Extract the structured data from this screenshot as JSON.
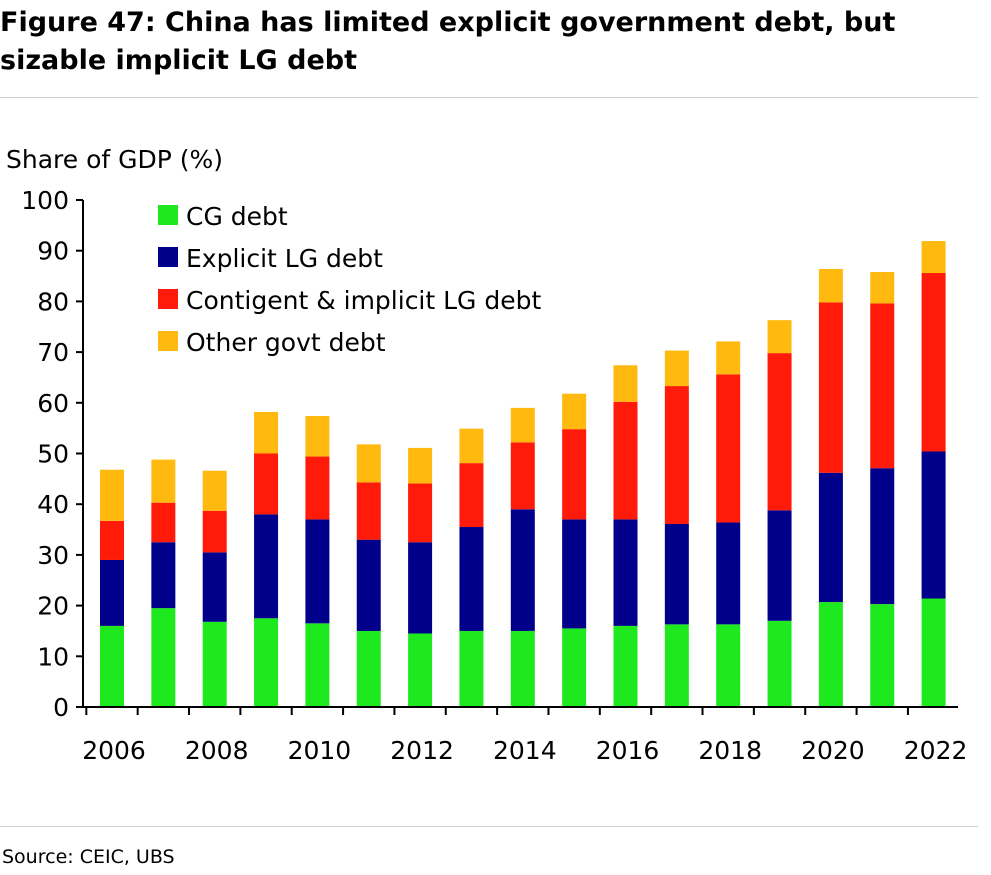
{
  "figure": {
    "title": "Figure 47: China has limited explicit government debt, but sizable implicit LG debt",
    "source": "Source: CEIC, UBS"
  },
  "chart_data": {
    "type": "bar",
    "stacked": true,
    "title": "",
    "ylabel": "Share of GDP (%)",
    "xlabel": "",
    "ylim": [
      0,
      100
    ],
    "yticks": [
      0,
      10,
      20,
      30,
      40,
      50,
      60,
      70,
      80,
      90,
      100
    ],
    "xtick_labels": [
      "2006",
      "2008",
      "2010",
      "2012",
      "2014",
      "2016",
      "2018",
      "2020",
      "2022"
    ],
    "categories": [
      "2006",
      "2007",
      "2008",
      "2009",
      "2010",
      "2011",
      "2012",
      "2013",
      "2014",
      "2015",
      "2016",
      "2017",
      "2018",
      "2019",
      "2020",
      "2021",
      "2022"
    ],
    "legend_position": "top-left",
    "series": [
      {
        "name": "CG debt",
        "color": "#1ee81e",
        "values": [
          16,
          19.5,
          16.8,
          17.5,
          16.5,
          15,
          14.5,
          15,
          15,
          15.5,
          16,
          16.3,
          16.3,
          17,
          20.7,
          20.3,
          21.4
        ]
      },
      {
        "name": "Explicit LG debt",
        "color": "#00008b",
        "values": [
          13,
          13,
          13.7,
          20.5,
          20.5,
          18,
          18,
          20.5,
          24,
          21.5,
          21,
          19.8,
          20.1,
          21.8,
          25.5,
          26.8,
          29
        ]
      },
      {
        "name": "Contigent & implicit LG debt",
        "color": "#ff1a0a",
        "values": [
          7.7,
          7.8,
          8.2,
          12,
          12.4,
          11.3,
          11.6,
          12.6,
          13.2,
          17.8,
          23.2,
          27.2,
          29.2,
          31,
          33.6,
          32.5,
          35.2
        ]
      },
      {
        "name": "Other govt debt",
        "color": "#ffb90f",
        "values": [
          10.1,
          8.5,
          7.9,
          8.2,
          8,
          7.5,
          7,
          6.8,
          6.8,
          7,
          7.2,
          7,
          6.5,
          6.5,
          6.6,
          6.2,
          6.3
        ]
      }
    ]
  }
}
